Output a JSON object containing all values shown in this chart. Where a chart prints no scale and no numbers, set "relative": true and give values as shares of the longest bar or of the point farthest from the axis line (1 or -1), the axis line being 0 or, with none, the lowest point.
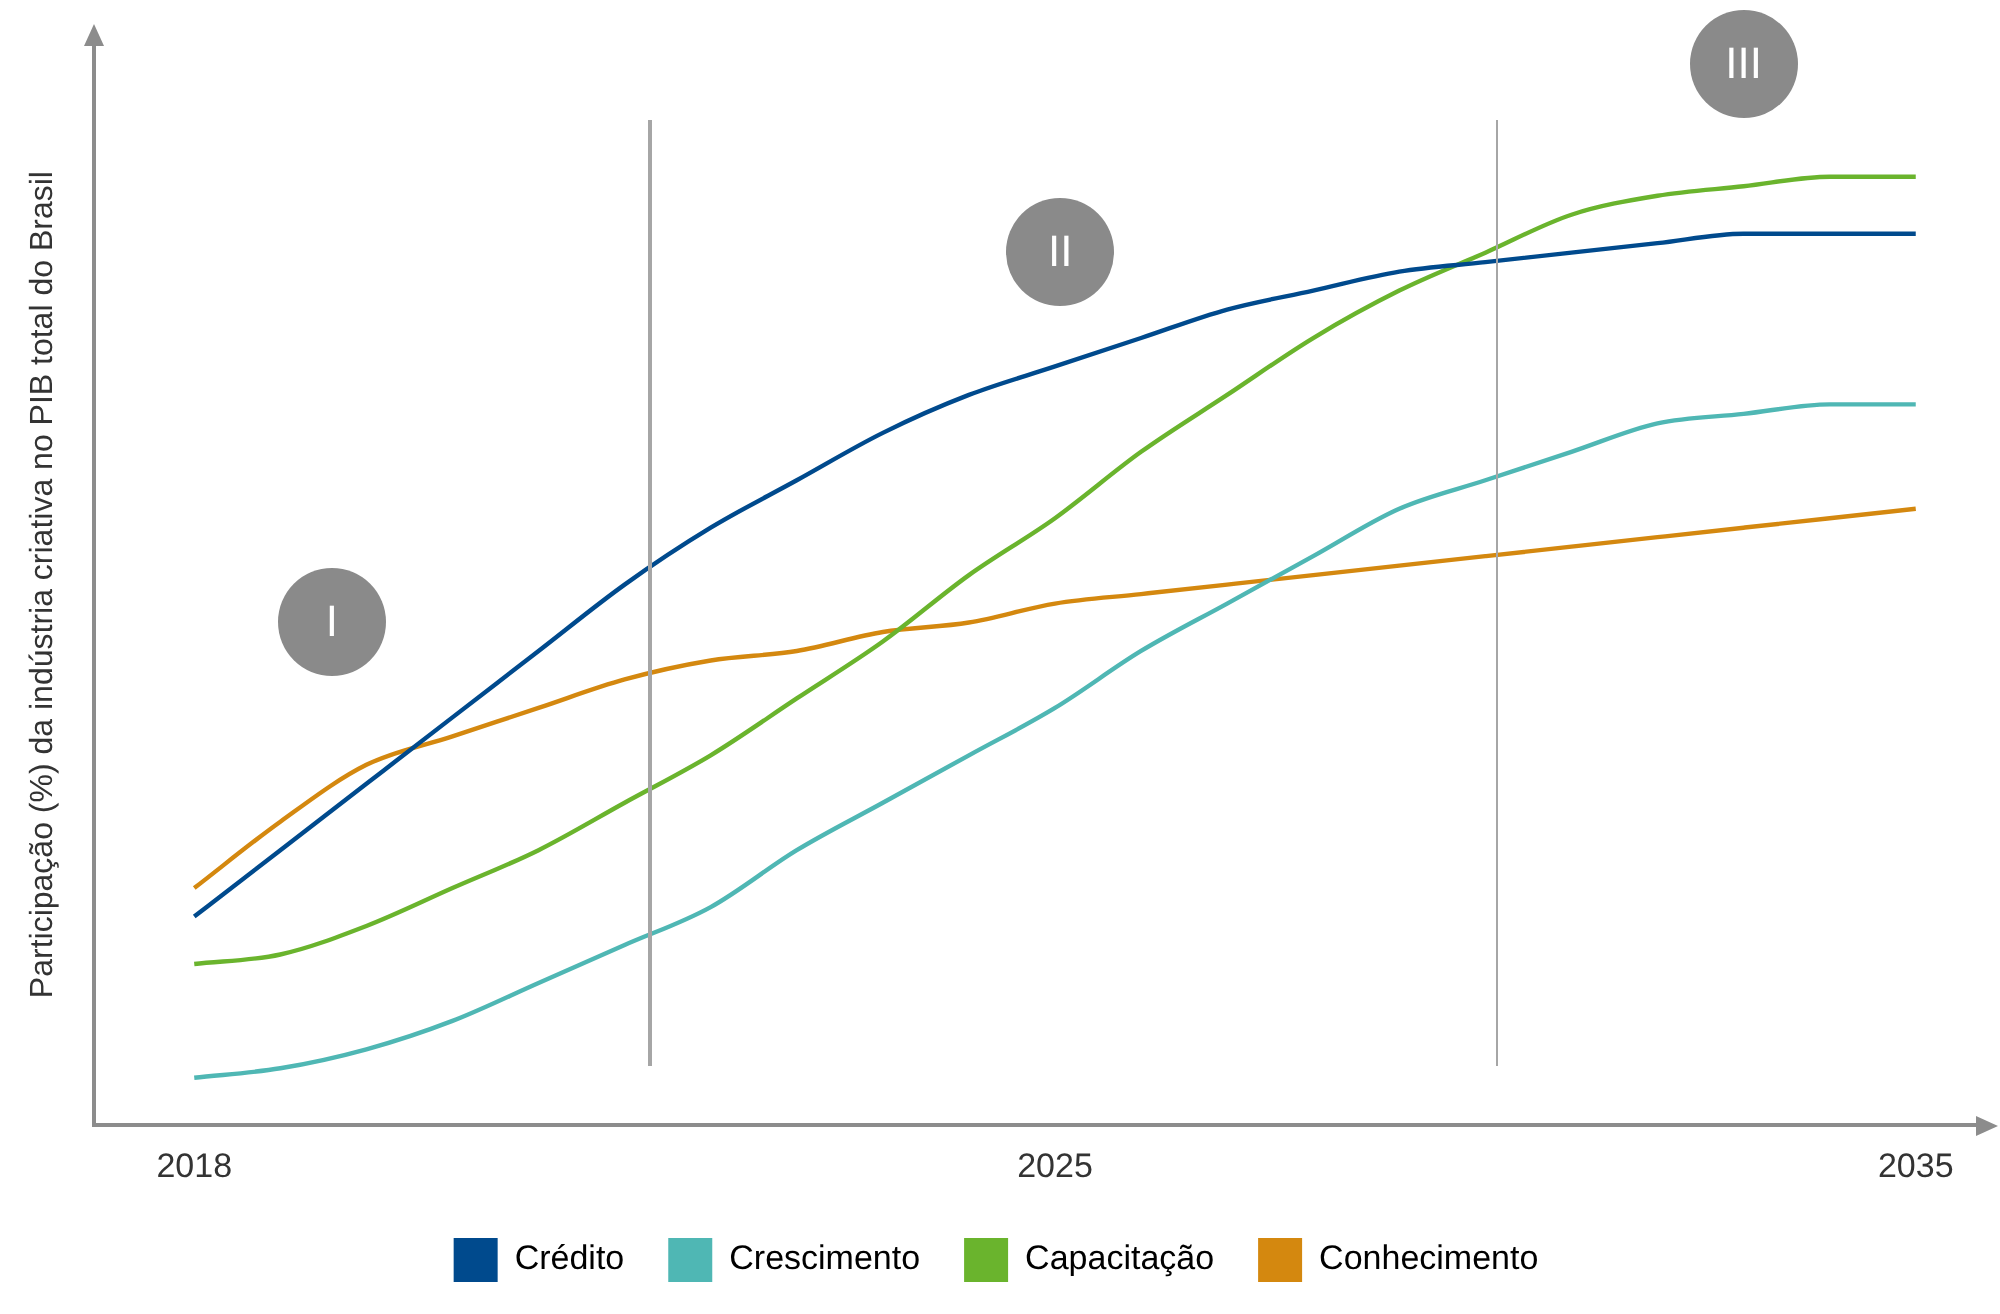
{
  "chart_data": {
    "type": "line",
    "relative": true,
    "ylabel": "Participação (%) da indústria criativa no PIB total do Brasil",
    "categories": [
      "2018",
      null,
      null,
      null,
      null,
      null,
      null,
      null,
      null,
      null,
      "2025",
      null,
      null,
      null,
      null,
      null,
      null,
      null,
      null,
      null,
      "2035"
    ],
    "series": [
      {
        "name": "Crédito",
        "color": "#004a8d",
        "values": [
          0.22,
          0.29,
          0.36,
          0.43,
          0.5,
          0.57,
          0.63,
          0.68,
          0.73,
          0.77,
          0.8,
          0.83,
          0.86,
          0.88,
          0.9,
          0.91,
          0.92,
          0.93,
          0.94,
          0.94,
          0.94
        ]
      },
      {
        "name": "Crescimento",
        "color": "#4fb7b4",
        "values": [
          0.05,
          0.06,
          0.08,
          0.11,
          0.15,
          0.19,
          0.23,
          0.29,
          0.34,
          0.39,
          0.44,
          0.5,
          0.55,
          0.6,
          0.65,
          0.68,
          0.71,
          0.74,
          0.75,
          0.76,
          0.76
        ]
      },
      {
        "name": "Capacitação",
        "color": "#6ab42d",
        "values": [
          0.17,
          0.18,
          0.21,
          0.25,
          0.29,
          0.34,
          0.39,
          0.45,
          0.51,
          0.58,
          0.64,
          0.71,
          0.77,
          0.83,
          0.88,
          0.92,
          0.96,
          0.98,
          0.99,
          1.0,
          1.0
        ]
      },
      {
        "name": "Conhecimento",
        "color": "#d4880f",
        "values": [
          0.25,
          0.32,
          0.38,
          0.41,
          0.44,
          0.47,
          0.49,
          0.5,
          0.52,
          0.53,
          0.55,
          0.56,
          0.57,
          0.58,
          0.59,
          0.6,
          0.61,
          0.62,
          0.63,
          0.64,
          0.65
        ]
      }
    ],
    "annotations": [
      "I",
      "II",
      "III"
    ],
    "grid": false,
    "legend": "bottom",
    "marker": "none",
    "line_style": "solid"
  }
}
